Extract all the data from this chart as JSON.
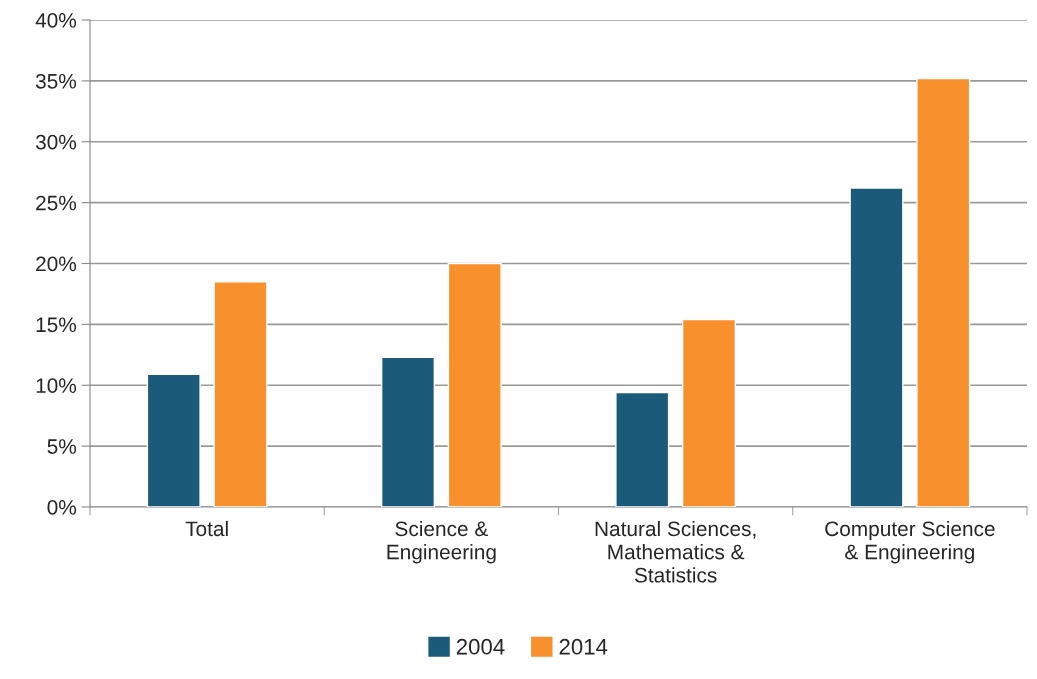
{
  "chart_data": {
    "type": "bar",
    "categories": [
      "Total",
      "Science &\nEngineering",
      "Natural Sciences,\nMathematics &\nStatistics",
      "Computer Science\n& Engineering"
    ],
    "series": [
      {
        "name": "2004",
        "color": "#1c5a7a",
        "values": [
          10.9,
          12.3,
          9.4,
          26.2
        ]
      },
      {
        "name": "2014",
        "color": "#f7902d",
        "values": [
          18.5,
          20.0,
          15.4,
          35.2
        ]
      }
    ],
    "ylim": [
      0,
      40
    ],
    "yticks": [
      {
        "value": 0,
        "label": "0%"
      },
      {
        "value": 5,
        "label": "5%"
      },
      {
        "value": 10,
        "label": "10%"
      },
      {
        "value": 15,
        "label": "15%"
      },
      {
        "value": 20,
        "label": "20%"
      },
      {
        "value": 25,
        "label": "25%"
      },
      {
        "value": 30,
        "label": "30%"
      },
      {
        "value": 35,
        "label": "35%"
      },
      {
        "value": 40,
        "label": "40%"
      }
    ],
    "grid": "y",
    "legend": "bottom"
  }
}
